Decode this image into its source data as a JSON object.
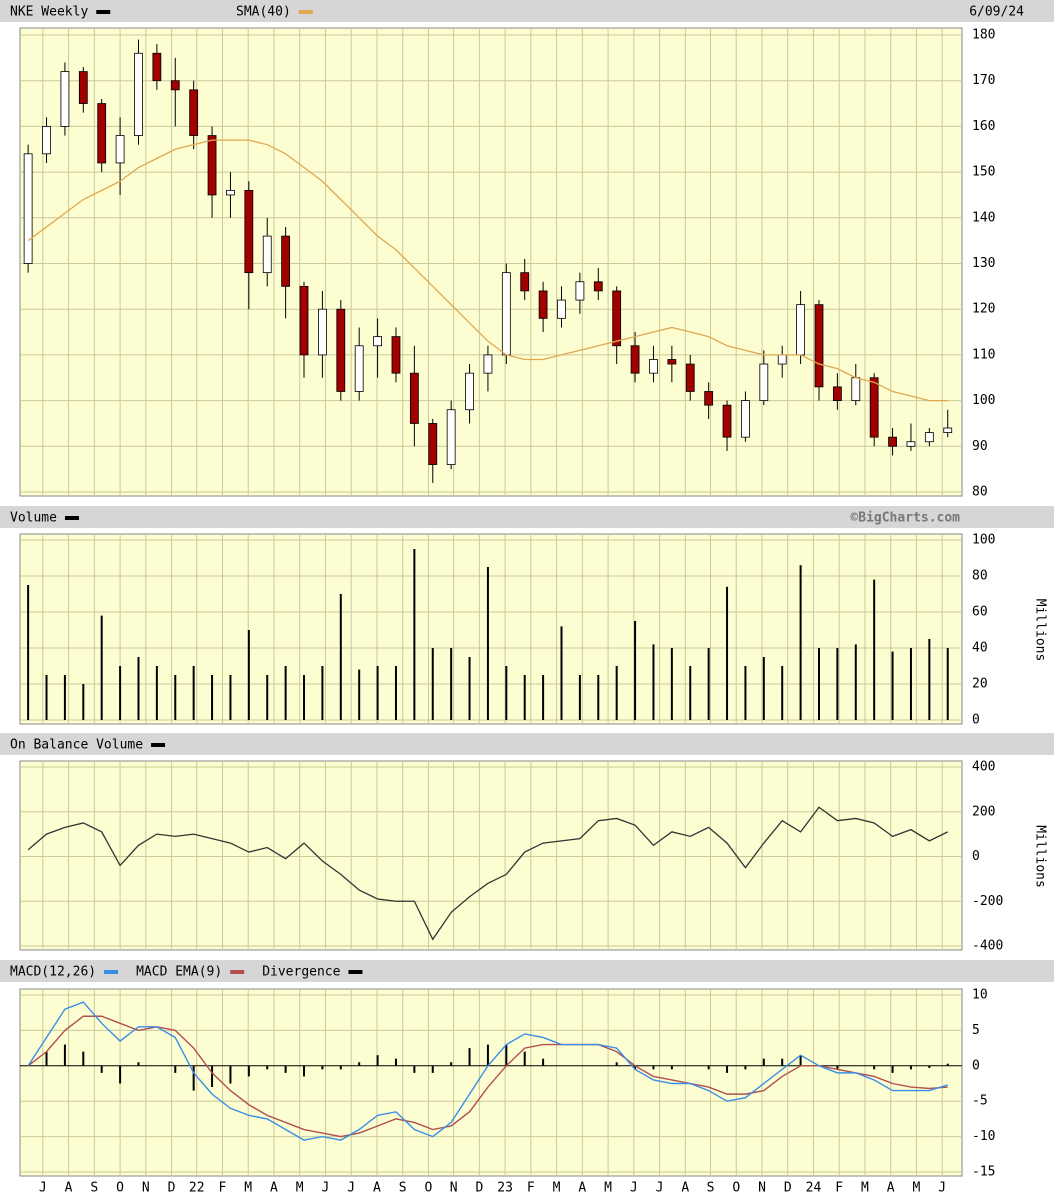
{
  "chart_data": [
    {
      "type": "candlestick",
      "date": "6/09/24",
      "x": [
        0,
        3,
        6,
        9,
        12,
        15,
        18,
        21,
        24,
        27,
        30,
        33,
        36,
        39,
        42,
        45,
        48,
        51,
        54,
        57,
        60,
        63,
        66,
        69,
        72,
        75,
        78,
        81,
        84,
        87,
        90,
        93,
        96,
        99,
        102,
        105,
        108,
        111,
        114,
        117,
        120,
        123,
        126,
        129,
        132,
        135,
        138,
        141,
        144,
        147,
        150
      ],
      "xlim": [
        -1,
        152
      ],
      "ylim": [
        80,
        180
      ],
      "yticks": [
        80,
        90,
        100,
        110,
        120,
        130,
        140,
        150,
        160,
        170,
        180
      ],
      "grid": true,
      "series": [
        {
          "name": "NKE Weekly",
          "color": "#000000",
          "color_up": "#ffffff",
          "color_down": "#a00000",
          "open": [
            130,
            154,
            160,
            172,
            165,
            152,
            158,
            176,
            170,
            168,
            158,
            145,
            146,
            128,
            136,
            125,
            110,
            120,
            102,
            112,
            114,
            106,
            95,
            86,
            98,
            106,
            110,
            128,
            124,
            118,
            122,
            126,
            124,
            112,
            106,
            109,
            108,
            102,
            99,
            92,
            100,
            108,
            110,
            121,
            103,
            100,
            105,
            92,
            90,
            91,
            93
          ],
          "high": [
            156,
            162,
            174,
            173,
            166,
            162,
            179,
            178,
            175,
            170,
            160,
            150,
            148,
            140,
            138,
            126,
            124,
            122,
            116,
            118,
            116,
            112,
            96,
            100,
            108,
            112,
            130,
            131,
            126,
            125,
            128,
            129,
            125,
            115,
            112,
            112,
            110,
            104,
            100,
            102,
            111,
            112,
            124,
            122,
            106,
            108,
            106,
            94,
            95,
            94,
            98
          ],
          "low": [
            128,
            152,
            158,
            163,
            150,
            145,
            156,
            168,
            160,
            155,
            140,
            140,
            120,
            125,
            118,
            105,
            105,
            100,
            100,
            105,
            104,
            90,
            82,
            85,
            95,
            102,
            108,
            122,
            115,
            116,
            119,
            122,
            108,
            104,
            104,
            104,
            100,
            96,
            89,
            91,
            99,
            105,
            108,
            100,
            98,
            99,
            90,
            88,
            89,
            90,
            92
          ],
          "close": [
            154,
            160,
            172,
            165,
            152,
            158,
            176,
            170,
            168,
            158,
            145,
            146,
            128,
            136,
            125,
            110,
            120,
            102,
            112,
            114,
            106,
            95,
            86,
            98,
            106,
            110,
            128,
            124,
            118,
            122,
            126,
            124,
            112,
            106,
            109,
            108,
            102,
            99,
            92,
            100,
            108,
            110,
            121,
            103,
            100,
            105,
            92,
            90,
            91,
            93,
            94
          ]
        },
        {
          "name": "SMA(40)",
          "color": "#e0a850",
          "values": [
            135,
            138,
            141,
            144,
            146,
            148,
            151,
            153,
            155,
            156,
            157,
            157,
            157,
            156,
            154,
            151,
            148,
            144,
            140,
            136,
            133,
            129,
            125,
            121,
            117,
            113,
            110,
            109,
            109,
            110,
            111,
            112,
            113,
            114,
            115,
            116,
            115,
            114,
            112,
            111,
            110,
            110,
            110,
            108,
            107,
            105,
            104,
            102,
            101,
            100,
            100
          ]
        }
      ]
    },
    {
      "type": "bar",
      "title": "Volume",
      "watermark": "©BigCharts.com",
      "y_label": "Millions",
      "color": "#000000",
      "x": [
        0,
        3,
        6,
        9,
        12,
        15,
        18,
        21,
        24,
        27,
        30,
        33,
        36,
        39,
        42,
        45,
        48,
        51,
        54,
        57,
        60,
        63,
        66,
        69,
        72,
        75,
        78,
        81,
        84,
        87,
        90,
        93,
        96,
        99,
        102,
        105,
        108,
        111,
        114,
        117,
        120,
        123,
        126,
        129,
        132,
        135,
        138,
        141,
        144,
        147,
        150
      ],
      "values": [
        75,
        25,
        25,
        20,
        58,
        30,
        35,
        30,
        25,
        30,
        25,
        25,
        50,
        25,
        30,
        25,
        30,
        70,
        28,
        30,
        30,
        95,
        40,
        40,
        35,
        85,
        30,
        25,
        25,
        52,
        25,
        25,
        30,
        55,
        42,
        40,
        30,
        40,
        74,
        30,
        35,
        30,
        86,
        40,
        40,
        42,
        78,
        38,
        40,
        45,
        40
      ],
      "xlim": [
        -1,
        152
      ],
      "ylim": [
        0,
        100
      ],
      "yticks": [
        0,
        20,
        40,
        60,
        80,
        100
      ],
      "grid": true
    },
    {
      "type": "line",
      "title": "On Balance Volume",
      "y_label": "Millions",
      "color": "#333333",
      "x": [
        0,
        3,
        6,
        9,
        12,
        15,
        18,
        21,
        24,
        27,
        30,
        33,
        36,
        39,
        42,
        45,
        48,
        51,
        54,
        57,
        60,
        63,
        66,
        69,
        72,
        75,
        78,
        81,
        84,
        87,
        90,
        93,
        96,
        99,
        102,
        105,
        108,
        111,
        114,
        117,
        120,
        123,
        126,
        129,
        132,
        135,
        138,
        141,
        144,
        147,
        150
      ],
      "values": [
        30,
        100,
        130,
        150,
        110,
        -40,
        50,
        100,
        90,
        100,
        80,
        60,
        20,
        40,
        -10,
        60,
        -20,
        -80,
        -150,
        -190,
        -200,
        -200,
        -370,
        -250,
        -180,
        -120,
        -80,
        20,
        60,
        70,
        80,
        160,
        170,
        140,
        50,
        110,
        90,
        130,
        60,
        -50,
        60,
        160,
        110,
        220,
        160,
        170,
        150,
        90,
        120,
        70,
        110
      ],
      "xlim": [
        -1,
        152
      ],
      "ylim": [
        -400,
        400
      ],
      "yticks": [
        -400,
        -200,
        0,
        200,
        400
      ],
      "grid": true
    },
    {
      "type": "macd",
      "x": [
        0,
        3,
        6,
        9,
        12,
        15,
        18,
        21,
        24,
        27,
        30,
        33,
        36,
        39,
        42,
        45,
        48,
        51,
        54,
        57,
        60,
        63,
        66,
        69,
        72,
        75,
        78,
        81,
        84,
        87,
        90,
        93,
        96,
        99,
        102,
        105,
        108,
        111,
        114,
        117,
        120,
        123,
        126,
        129,
        132,
        135,
        138,
        141,
        144,
        147,
        150
      ],
      "series": [
        {
          "name": "MACD(12,26)",
          "color": "#3a8ee6",
          "values": [
            0,
            4,
            8,
            9,
            6,
            3.5,
            5.5,
            5.5,
            4,
            -1,
            -4,
            -6,
            -7,
            -7.5,
            -9,
            -10.5,
            -10,
            -10.5,
            -9,
            -7,
            -6.5,
            -9,
            -10,
            -8,
            -4,
            0,
            3,
            4.5,
            4,
            3,
            3,
            3,
            2.5,
            -0.5,
            -2,
            -2.5,
            -2.5,
            -3.5,
            -5,
            -4.5,
            -2.5,
            -0.5,
            1.5,
            0,
            -1,
            -1,
            -2,
            -3.5,
            -3.5,
            -3.5,
            -2.7
          ]
        },
        {
          "name": "MACD EMA(9)",
          "color": "#b05050",
          "values": [
            0,
            2,
            5,
            7,
            7,
            6,
            5,
            5.5,
            5,
            2.5,
            -1,
            -3.5,
            -5.5,
            -7,
            -8,
            -9,
            -9.5,
            -10,
            -9.5,
            -8.5,
            -7.5,
            -8,
            -9,
            -8.5,
            -6.5,
            -3,
            0,
            2.5,
            3,
            3,
            3,
            3,
            2,
            0,
            -1.5,
            -2,
            -2.5,
            -3,
            -4,
            -4,
            -3.5,
            -1.5,
            0,
            0,
            -0.5,
            -1,
            -1.5,
            -2.5,
            -3,
            -3.2,
            -3
          ]
        },
        {
          "name": "Divergence",
          "color": "#000000",
          "values": [
            0,
            2,
            3,
            2,
            -1,
            -2.5,
            0.5,
            0,
            -1,
            -3.5,
            -3,
            -2.5,
            -1.5,
            -0.5,
            -1,
            -1.5,
            -0.5,
            -0.5,
            0.5,
            1.5,
            1,
            -1,
            -1,
            0.5,
            2.5,
            3,
            3,
            2,
            1,
            0,
            0,
            0,
            0.5,
            -0.5,
            -0.5,
            -0.5,
            0,
            -0.5,
            -1,
            -0.5,
            1,
            1,
            1.5,
            0,
            -0.5,
            0,
            -0.5,
            -1,
            -0.5,
            -0.3,
            0.3
          ]
        }
      ],
      "xlim": [
        -1,
        152
      ],
      "ylim": [
        -15,
        10
      ],
      "yticks": [
        -15,
        -10,
        -5,
        0,
        5,
        10
      ],
      "grid": true,
      "xticks": [
        {
          "value": 2.4,
          "label": "J"
        },
        {
          "value": 6.6,
          "label": "A"
        },
        {
          "value": 10.8,
          "label": "S"
        },
        {
          "value": 15.0,
          "label": "O"
        },
        {
          "value": 19.2,
          "label": "N"
        },
        {
          "value": 23.4,
          "label": "D"
        },
        {
          "value": 27.5,
          "label": "22"
        },
        {
          "value": 31.7,
          "label": "F"
        },
        {
          "value": 35.9,
          "label": "M"
        },
        {
          "value": 40.1,
          "label": "A"
        },
        {
          "value": 44.3,
          "label": "M"
        },
        {
          "value": 48.5,
          "label": "J"
        },
        {
          "value": 52.7,
          "label": "J"
        },
        {
          "value": 56.9,
          "label": "A"
        },
        {
          "value": 61.1,
          "label": "S"
        },
        {
          "value": 65.3,
          "label": "O"
        },
        {
          "value": 69.4,
          "label": "N"
        },
        {
          "value": 73.6,
          "label": "D"
        },
        {
          "value": 77.8,
          "label": "23"
        },
        {
          "value": 82.0,
          "label": "F"
        },
        {
          "value": 86.2,
          "label": "M"
        },
        {
          "value": 90.4,
          "label": "A"
        },
        {
          "value": 94.6,
          "label": "M"
        },
        {
          "value": 98.8,
          "label": "J"
        },
        {
          "value": 103.0,
          "label": "J"
        },
        {
          "value": 107.2,
          "label": "A"
        },
        {
          "value": 111.3,
          "label": "S"
        },
        {
          "value": 115.5,
          "label": "O"
        },
        {
          "value": 119.7,
          "label": "N"
        },
        {
          "value": 123.9,
          "label": "D"
        },
        {
          "value": 128.1,
          "label": "24"
        },
        {
          "value": 132.3,
          "label": "F"
        },
        {
          "value": 136.5,
          "label": "M"
        },
        {
          "value": 140.7,
          "label": "A"
        },
        {
          "value": 144.9,
          "label": "M"
        },
        {
          "value": 149.1,
          "label": "J"
        }
      ]
    }
  ]
}
